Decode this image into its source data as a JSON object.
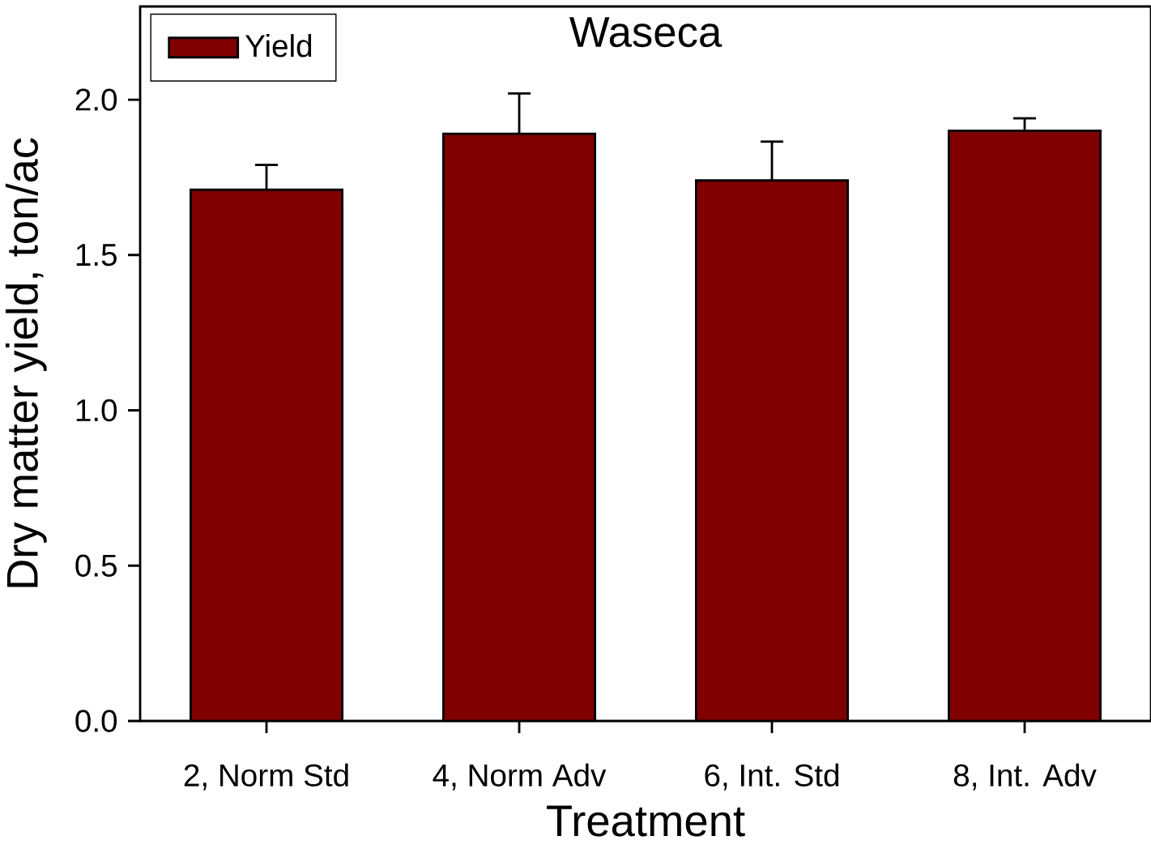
{
  "chart_data": {
    "type": "bar",
    "title": "Waseca",
    "xlabel": "Treatment",
    "ylabel": "Dry matter yield, ton/ac",
    "categories": [
      "2, Norm Std",
      "4, Norm Adv",
      "6, Int. Std",
      "8, Int. Adv"
    ],
    "series": [
      {
        "name": "Yield",
        "color": "#800000",
        "values": [
          1.71,
          1.89,
          1.74,
          1.9
        ],
        "errors": [
          [
            1.71,
            1.79
          ],
          [
            1.89,
            2.02
          ],
          [
            1.74,
            1.865
          ],
          [
            1.9,
            1.94
          ]
        ]
      }
    ],
    "ylim": [
      0,
      2.3
    ],
    "yticks": [
      {
        "value": 0.0,
        "label": "0.0"
      },
      {
        "value": 0.5,
        "label": "0.5"
      },
      {
        "value": 1.0,
        "label": "1.0"
      },
      {
        "value": 1.5,
        "label": "1.5"
      },
      {
        "value": 2.0,
        "label": "2.0"
      }
    ],
    "grid": false,
    "legend": "top left"
  }
}
